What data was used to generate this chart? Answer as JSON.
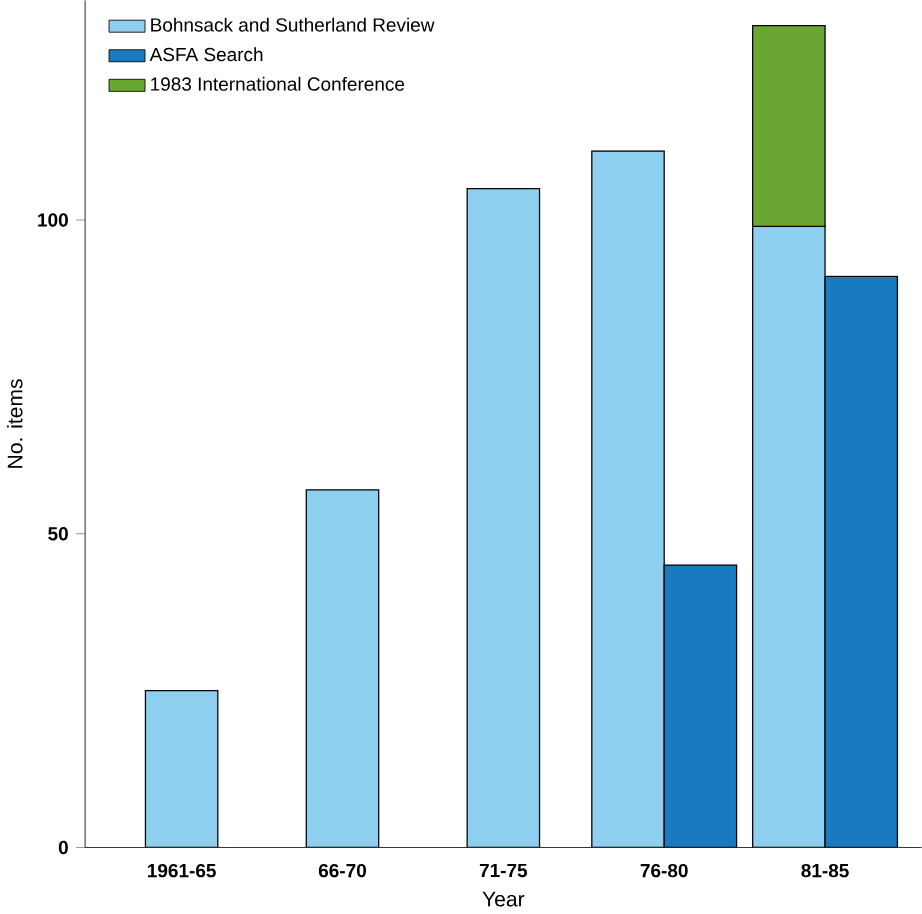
{
  "chart_data": {
    "type": "bar",
    "xlabel": "Year",
    "ylabel": "No. items",
    "categories": [
      "1961-65",
      "66-70",
      "71-75",
      "76-80",
      "81-85"
    ],
    "series": [
      {
        "name": "Bohnsack and Sutherland Review",
        "color": "#8ecff0",
        "values": [
          25,
          57,
          105,
          111,
          99
        ]
      },
      {
        "name": "ASFA Search",
        "color": "#1a7ac0",
        "values": [
          null,
          null,
          null,
          45,
          91
        ]
      },
      {
        "name": "1983 International Conference",
        "color": "#6aa632",
        "values": [
          null,
          null,
          null,
          null,
          32
        ],
        "base": [
          null,
          null,
          null,
          null,
          99
        ]
      }
    ],
    "ylim": [
      0,
      135
    ],
    "yticks": [
      0,
      50,
      100
    ],
    "legend": "top left"
  }
}
